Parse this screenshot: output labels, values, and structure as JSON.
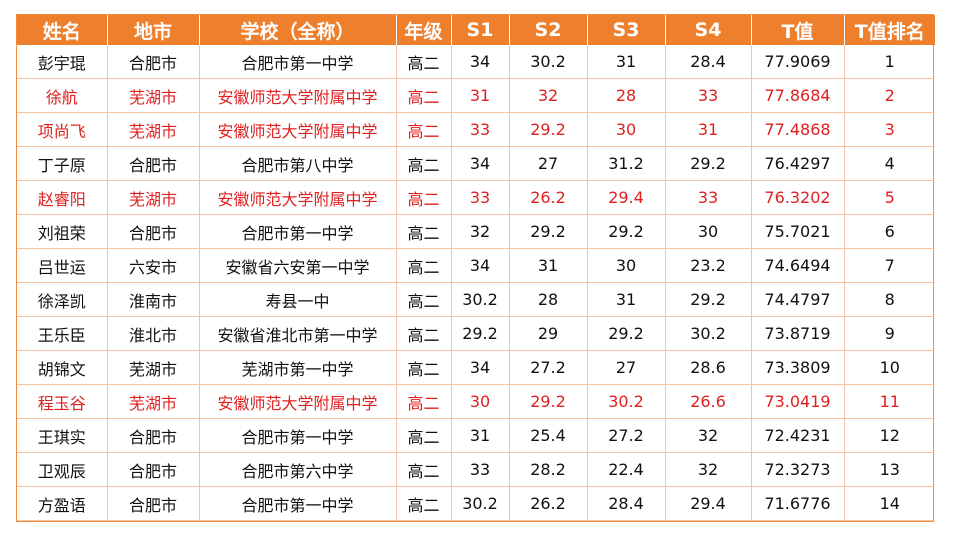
{
  "headers": [
    "姓名",
    "地市",
    "学校（全称）",
    "年级",
    "S1",
    "S2",
    "S3",
    "S4",
    "T值",
    "T值排名"
  ],
  "rows": [
    {
      "highlight": false,
      "cells": [
        "彭宇琨",
        "合肥市",
        "合肥市第一中学",
        "高二",
        "34",
        "30.2",
        "31",
        "28.4",
        "77.9069",
        "1"
      ]
    },
    {
      "highlight": true,
      "cells": [
        "徐航",
        "芜湖市",
        "安徽师范大学附属中学",
        "高二",
        "31",
        "32",
        "28",
        "33",
        "77.8684",
        "2"
      ]
    },
    {
      "highlight": true,
      "cells": [
        "项尚飞",
        "芜湖市",
        "安徽师范大学附属中学",
        "高二",
        "33",
        "29.2",
        "30",
        "31",
        "77.4868",
        "3"
      ]
    },
    {
      "highlight": false,
      "cells": [
        "丁子原",
        "合肥市",
        "合肥市第八中学",
        "高二",
        "34",
        "27",
        "31.2",
        "29.2",
        "76.4297",
        "4"
      ]
    },
    {
      "highlight": true,
      "cells": [
        "赵睿阳",
        "芜湖市",
        "安徽师范大学附属中学",
        "高二",
        "33",
        "26.2",
        "29.4",
        "33",
        "76.3202",
        "5"
      ]
    },
    {
      "highlight": false,
      "cells": [
        "刘祖荣",
        "合肥市",
        "合肥市第一中学",
        "高二",
        "32",
        "29.2",
        "29.2",
        "30",
        "75.7021",
        "6"
      ]
    },
    {
      "highlight": false,
      "cells": [
        "吕世运",
        "六安市",
        "安徽省六安第一中学",
        "高二",
        "34",
        "31",
        "30",
        "23.2",
        "74.6494",
        "7"
      ]
    },
    {
      "highlight": false,
      "cells": [
        "徐泽凯",
        "淮南市",
        "寿县一中",
        "高二",
        "30.2",
        "28",
        "31",
        "29.2",
        "74.4797",
        "8"
      ]
    },
    {
      "highlight": false,
      "cells": [
        "王乐臣",
        "淮北市",
        "安徽省淮北市第一中学",
        "高二",
        "29.2",
        "29",
        "29.2",
        "30.2",
        "73.8719",
        "9"
      ]
    },
    {
      "highlight": false,
      "cells": [
        "胡锦文",
        "芜湖市",
        "芜湖市第一中学",
        "高二",
        "34",
        "27.2",
        "27",
        "28.6",
        "73.3809",
        "10"
      ]
    },
    {
      "highlight": true,
      "cells": [
        "程玉谷",
        "芜湖市",
        "安徽师范大学附属中学",
        "高二",
        "30",
        "29.2",
        "30.2",
        "26.6",
        "73.0419",
        "11"
      ]
    },
    {
      "highlight": false,
      "cells": [
        "王琪实",
        "合肥市",
        "合肥市第一中学",
        "高二",
        "31",
        "25.4",
        "27.2",
        "32",
        "72.4231",
        "12"
      ]
    },
    {
      "highlight": false,
      "cells": [
        "卫观辰",
        "合肥市",
        "合肥市第六中学",
        "高二",
        "33",
        "28.2",
        "22.4",
        "32",
        "72.3273",
        "13"
      ]
    },
    {
      "highlight": false,
      "cells": [
        "方盈语",
        "合肥市",
        "合肥市第一中学",
        "高二",
        "30.2",
        "26.2",
        "28.4",
        "29.4",
        "71.6776",
        "14"
      ]
    }
  ],
  "colors": {
    "header_bg": "#ee7f2d",
    "header_text": "#ffffff",
    "highlight_text": "#e02020",
    "normal_text": "#111111",
    "grid_line": "#f4c3a0"
  }
}
